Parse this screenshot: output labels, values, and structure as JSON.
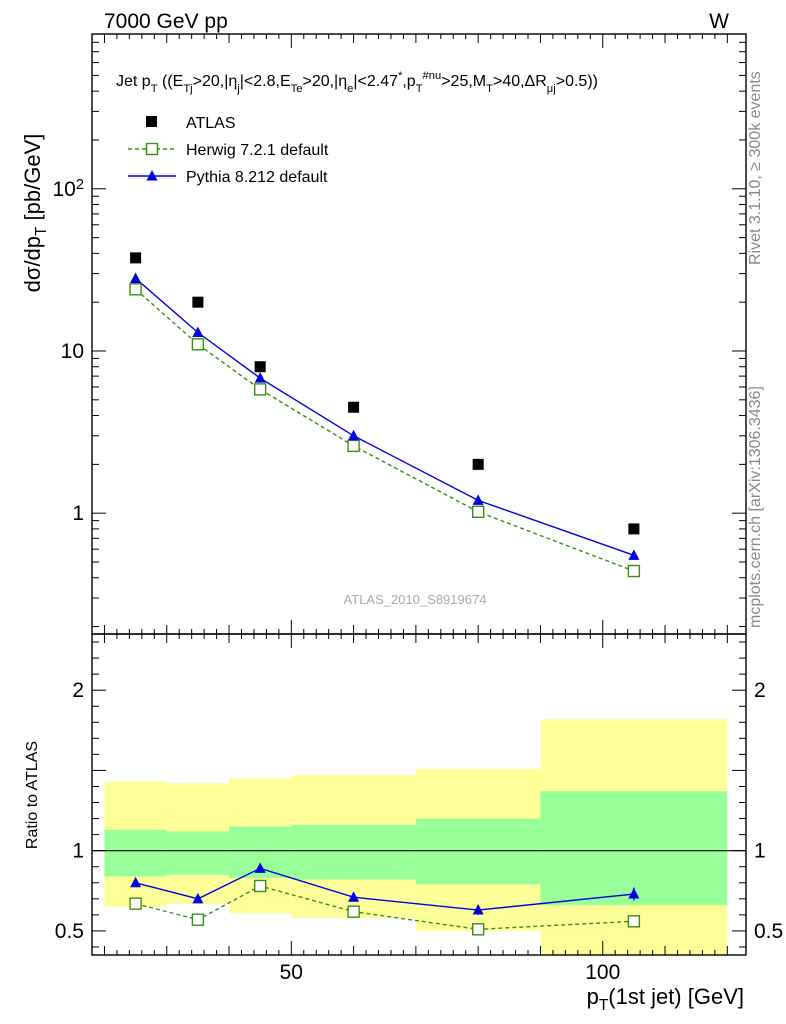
{
  "header": {
    "left": "7000 GeV pp",
    "right": "W"
  },
  "side_labels": {
    "rivet": "Rivet 3.1.10, ≥ 300k events",
    "mcplots": "mcplots.cern.ch [arXiv:1306.3436]"
  },
  "colors": {
    "atlas": "#000000",
    "herwig": "#3a8f12",
    "pythia": "#0000dd",
    "band_inner": "#99ff99",
    "band_outer": "#ffff99"
  },
  "chart_data": [
    {
      "type": "scatter",
      "title": "Jet p_T ((E_Tj>20,|η_j|<2.8,E_Te>20,|η_e|<2.47^*,p_T^#nu>25,M_T>40,ΔR_μj>0.5))",
      "watermark": "ATLAS_2010_S8919674",
      "xlabel": "p_T(1st jet) [GeV]",
      "ylabel": "dσ/dp_T [pb/GeV]",
      "yscale": "log",
      "xlim": [
        18,
        123
      ],
      "ylim": [
        0.18,
        900
      ],
      "yticks": [
        {
          "value": 1,
          "label": "1"
        },
        {
          "value": 10,
          "label": "10"
        },
        {
          "value": 100,
          "label": "10^2"
        }
      ],
      "legend": {
        "placement": "top-left"
      },
      "series": [
        {
          "name": "ATLAS",
          "marker": "filled-square",
          "x": [
            25,
            35,
            45,
            60,
            80,
            105
          ],
          "y": [
            37.5,
            20,
            8,
            4.5,
            2.0,
            0.8
          ]
        },
        {
          "name": "Herwig 7.2.1 default",
          "marker": "open-square",
          "line": "dashed",
          "x": [
            25,
            35,
            45,
            60,
            80,
            105
          ],
          "y": [
            24,
            11,
            5.8,
            2.6,
            1.02,
            0.44
          ]
        },
        {
          "name": "Pythia 8.212 default",
          "marker": "filled-triangle",
          "line": "solid",
          "x": [
            25,
            35,
            45,
            60,
            80,
            105
          ],
          "y": [
            28,
            13,
            6.8,
            3.0,
            1.2,
            0.55
          ]
        }
      ]
    },
    {
      "type": "line",
      "xlabel": "p_T(1st jet) [GeV]",
      "ylabel": "Ratio to ATLAS",
      "xlim": [
        18,
        123
      ],
      "ylim": [
        0.35,
        2.35
      ],
      "xticks": [
        50,
        100
      ],
      "yticks": [
        {
          "value": 0.5,
          "label": "0.5"
        },
        {
          "value": 1,
          "label": "1"
        },
        {
          "value": 2,
          "label": "2"
        }
      ],
      "bands": [
        {
          "xlo": 20,
          "xhi": 30,
          "inner": [
            0.84,
            1.13
          ],
          "outer": [
            0.65,
            1.43
          ]
        },
        {
          "xlo": 30,
          "xhi": 40,
          "inner": [
            0.85,
            1.12
          ],
          "outer": [
            0.67,
            1.42
          ]
        },
        {
          "xlo": 40,
          "xhi": 50,
          "inner": [
            0.83,
            1.15
          ],
          "outer": [
            0.61,
            1.45
          ]
        },
        {
          "xlo": 50,
          "xhi": 70,
          "inner": [
            0.82,
            1.16
          ],
          "outer": [
            0.58,
            1.47
          ]
        },
        {
          "xlo": 70,
          "xhi": 90,
          "inner": [
            0.79,
            1.2
          ],
          "outer": [
            0.5,
            1.51
          ]
        },
        {
          "xlo": 90,
          "xhi": 120,
          "inner": [
            0.66,
            1.37
          ],
          "outer": [
            0.35,
            1.82
          ]
        }
      ],
      "series": [
        {
          "name": "Herwig 7.2.1 default",
          "x": [
            25,
            35,
            45,
            60,
            80,
            105
          ],
          "y": [
            0.67,
            0.57,
            0.78,
            0.62,
            0.51,
            0.56
          ],
          "err": [
            0.0,
            0.0,
            0.0,
            0.0,
            0.0,
            0.0
          ]
        },
        {
          "name": "Pythia 8.212 default",
          "x": [
            25,
            35,
            45,
            60,
            80,
            105
          ],
          "y": [
            0.8,
            0.7,
            0.89,
            0.71,
            0.63,
            0.73
          ],
          "err": [
            0.0,
            0.0,
            0.02,
            0.02,
            0.03,
            0.04
          ]
        }
      ]
    }
  ]
}
